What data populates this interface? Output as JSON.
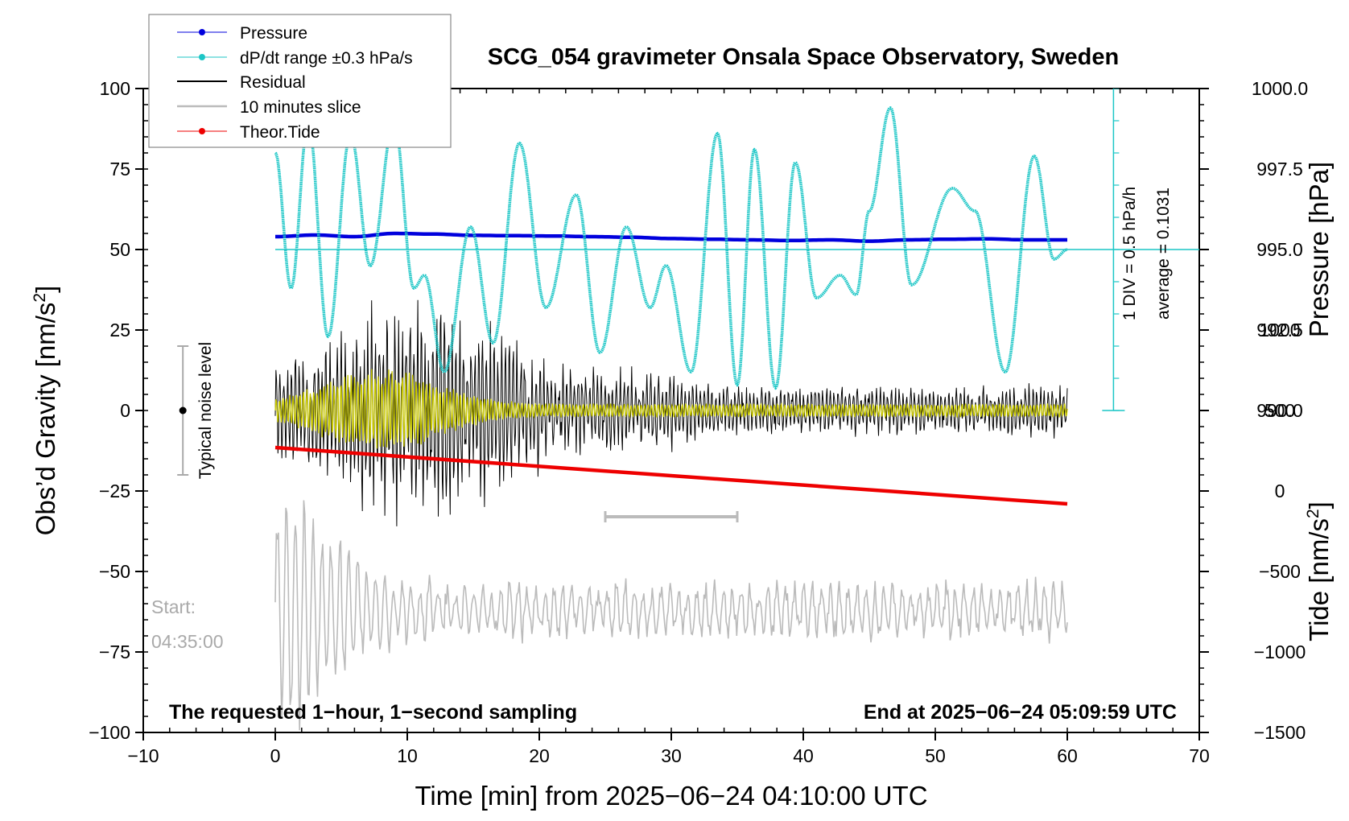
{
  "chart_data": {
    "type": "line",
    "title": "SCG_054 gravimeter Onsala Space Observatory, Sweden",
    "xlabel": "Time [min] from 2025−06−24 04:10:00 UTC",
    "ylabel": "Obs’d Gravity [nm/s",
    "ylabel_sup": "2",
    "ylabel_close": "]",
    "xlim": [
      -10,
      70
    ],
    "ylim": [
      -100,
      100
    ],
    "x_ticks": [
      -10,
      0,
      10,
      20,
      30,
      40,
      50,
      60,
      70
    ],
    "x_tick_labels": [
      "−10",
      "0",
      "10",
      "20",
      "30",
      "40",
      "50",
      "60",
      "70"
    ],
    "y_ticks": [
      -100,
      -75,
      -50,
      -25,
      0,
      25,
      50,
      75,
      100
    ],
    "y_tick_labels": [
      "−100",
      "−75",
      "−50",
      "−25",
      "0",
      "25",
      "50",
      "75",
      "100"
    ],
    "right_pressure_axis": {
      "label": "Pressure [hPa]",
      "ticks": [
        990.0,
        992.5,
        995.0,
        997.5,
        1000.0
      ],
      "tick_labels": [
        "990.0",
        "992.5",
        "995.0",
        "997.5",
        "1000.0"
      ],
      "pressure_at_y50": 995.0,
      "hpa_per_unit": 0.1
    },
    "right_tide_axis": {
      "label": "Tide [nm/s",
      "label_sup": "2",
      "label_close": "]",
      "ticks": [
        -1500,
        -1000,
        -500,
        0,
        500,
        1000
      ],
      "tick_labels": [
        "−1500",
        "−1000",
        "−500",
        "0",
        "500",
        "1000"
      ],
      "tide_at_ymin": -1500,
      "nms2_per_unit": 20
    },
    "dpdt_axis": {
      "div_label": "1 DIV = 0.5 hPa/h",
      "average_label": "average = 0.1031",
      "baseline_y": 50
    },
    "legend": {
      "placement": "top-left",
      "entries": [
        {
          "label": "Pressure",
          "color": "#0000dd",
          "marker": "dot"
        },
        {
          "label": "dP/dt range ±0.3 hPa/s",
          "color": "#1cc6c6",
          "marker": "dot"
        },
        {
          "label": "Residual",
          "color": "#000000",
          "marker": "none"
        },
        {
          "label": "10 minutes slice",
          "color": "#bbbbbb",
          "marker": "none"
        },
        {
          "label": "Theor.Tide",
          "color": "#ee0000",
          "marker": "dot"
        }
      ]
    },
    "noise_label": "Typical noise level",
    "noise_range": [
      -20,
      20
    ],
    "start_label": "Start:",
    "start_time": "04:35:00",
    "slice_window": {
      "x": [
        25,
        35
      ],
      "y": -33
    },
    "bottom_left_note": "The requested 1−hour, 1−second sampling",
    "bottom_right_note": "End at 2025−06−24 05:09:59 UTC",
    "colors": {
      "pressure": "#0000dd",
      "dpdt": "#1cc6c6",
      "residual": "#000000",
      "filtered": "#c8c800",
      "slice": "#bbbbbb",
      "tide": "#ee0000"
    },
    "series": [
      {
        "name": "Pressure",
        "unit": "hPa",
        "x": [
          0,
          3,
          6,
          9,
          12,
          15,
          18,
          21,
          24,
          27,
          30,
          33,
          36,
          39,
          42,
          45,
          48,
          51,
          54,
          57,
          60
        ],
        "values": [
          995.4,
          995.45,
          995.4,
          995.5,
          995.48,
          995.44,
          995.43,
          995.42,
          995.4,
          995.38,
          995.34,
          995.32,
          995.3,
          995.28,
          995.3,
          995.26,
          995.3,
          995.32,
          995.33,
          995.3,
          995.3
        ]
      },
      {
        "name": "dP/dt range ±0.3 hPa/s",
        "unit": "gravity-axis units",
        "x": [
          0,
          1.2,
          2.5,
          4.0,
          5.7,
          7.2,
          9.0,
          10.5,
          11.3,
          12.8,
          14.8,
          16.5,
          18.5,
          20.5,
          22.8,
          24.6,
          26.6,
          28.4,
          29.6,
          31.5,
          33.5,
          35.0,
          36.3,
          37.9,
          39.4,
          41.0,
          42.8,
          44.0,
          45.0,
          46.6,
          48.2,
          51.3,
          53.0,
          55.3,
          57.5,
          59.0,
          60.0
        ],
        "values": [
          80,
          38,
          90,
          23,
          86,
          45,
          90,
          38,
          42,
          12,
          57,
          21,
          83,
          32,
          67,
          18,
          57,
          32,
          45,
          12,
          86,
          8,
          81,
          7,
          77,
          35,
          42,
          36,
          62,
          94,
          39,
          69,
          62,
          12,
          79,
          47,
          50
        ]
      },
      {
        "name": "Theor.Tide",
        "unit": "nm/s2",
        "x": [
          0,
          60
        ],
        "values": [
          270,
          -80
        ]
      }
    ]
  }
}
